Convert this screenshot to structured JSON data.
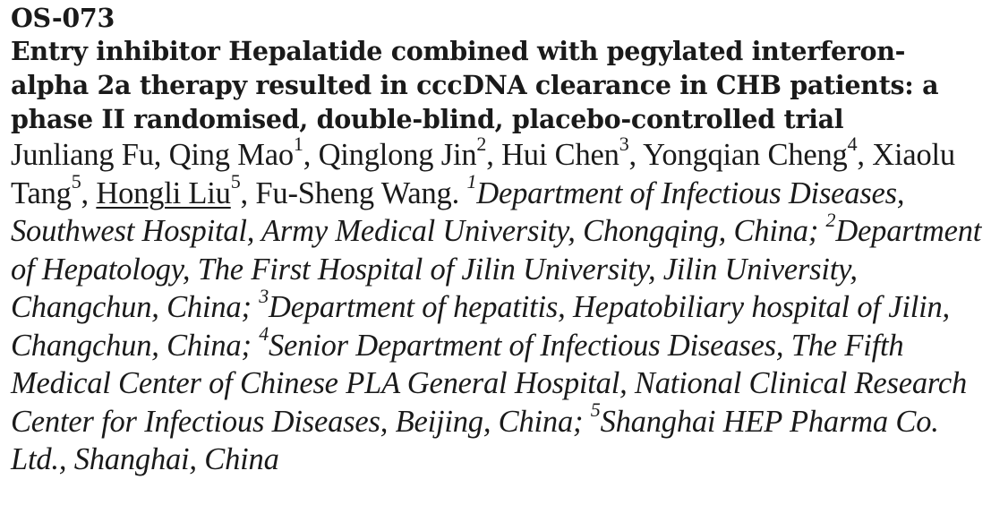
{
  "abstract": {
    "id": "OS-073",
    "title": "Entry inhibitor Hepalatide combined with pegylated interferon-alpha 2a therapy resulted in cccDNA clearance in CHB patients: a phase II randomised, double-blind, placebo-controlled trial",
    "authors": [
      {
        "name": "Junliang Fu",
        "aff": "",
        "sep": ", "
      },
      {
        "name": "Qing Mao",
        "aff": "1",
        "sep": ", "
      },
      {
        "name": "Qinglong Jin",
        "aff": "2",
        "sep": ", "
      },
      {
        "name": "Hui Chen",
        "aff": "3",
        "sep": ", "
      },
      {
        "name": "Yongqian Cheng",
        "aff": "4",
        "sep": ", "
      },
      {
        "name": "Xiaolu Tang",
        "aff": "5",
        "sep": ", "
      },
      {
        "name": "Hongli Liu",
        "aff": "5",
        "sep": ", ",
        "presenting": true
      },
      {
        "name": "Fu-Sheng Wang",
        "aff": "",
        "sep": ". "
      }
    ],
    "affiliations": [
      {
        "num": "1",
        "text": "Department of Infectious Diseases, Southwest Hospital, Army Medical University, Chongqing, China; "
      },
      {
        "num": "2",
        "text": "Department of Hepatology, The First Hospital of Jilin University, Jilin University, Changchun, China; "
      },
      {
        "num": "3",
        "text": "Department of hepatitis, Hepatobiliary hospital of Jilin, Changchun, China; "
      },
      {
        "num": "4",
        "text": "Senior Department of Infectious Diseases, The Fifth Medical Center of Chinese PLA General Hospital, National Clinical Research Center for Infectious Diseases, Beijing, China; "
      },
      {
        "num": "5",
        "text": "Shanghai HEP Pharma Co. Ltd., Shanghai, China"
      }
    ]
  }
}
